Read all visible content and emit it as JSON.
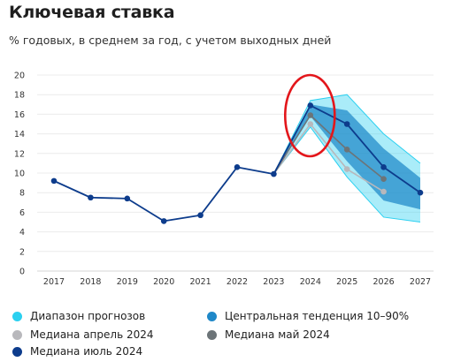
{
  "title": "Ключевая ставка",
  "subtitle": "% годовых, в среднем за год, с учетом выходных дней",
  "legend": [
    {
      "label": "Диапазон прогнозов",
      "color": "#2bd0f0"
    },
    {
      "label": "Центральная тенденция 10–90%",
      "color": "#1f88c8"
    },
    {
      "label": "Медиана апрель 2024",
      "color": "#b8b8bc"
    },
    {
      "label": "Медиана май 2024",
      "color": "#6c7478"
    },
    {
      "label": "Медиана июль 2024",
      "color": "#0d3c8c"
    }
  ],
  "chart_data": {
    "type": "line",
    "title": "Ключевая ставка",
    "subtitle": "% годовых, в среднем за год, с учетом выходных дней",
    "categories": [
      "2017",
      "2018",
      "2019",
      "2020",
      "2021",
      "2022",
      "2023",
      "2024",
      "2025",
      "2026",
      "2027"
    ],
    "ylim": [
      0,
      20
    ],
    "yticks": [
      0,
      2,
      4,
      6,
      8,
      10,
      12,
      14,
      16,
      18,
      20
    ],
    "grid": true,
    "series": [
      {
        "name": "Медиана июль 2024",
        "color": "#0d3c8c",
        "values": [
          9.2,
          7.5,
          7.4,
          5.1,
          5.7,
          10.6,
          9.9,
          16.9,
          15.0,
          10.6,
          8.0
        ]
      },
      {
        "name": "Медиана май 2024",
        "color": "#6c7478",
        "values": [
          null,
          null,
          null,
          null,
          null,
          null,
          9.9,
          15.9,
          12.4,
          9.4,
          null
        ]
      },
      {
        "name": "Медиана апрель 2024",
        "color": "#b8b8bc",
        "values": [
          null,
          null,
          null,
          null,
          null,
          null,
          9.9,
          15.0,
          10.4,
          8.1,
          null
        ]
      }
    ],
    "ranges": [
      {
        "name": "Диапазон прогнозов",
        "color": "#2bd0f0",
        "x": [
          "2023",
          "2024",
          "2025",
          "2026",
          "2027"
        ],
        "low": [
          9.9,
          14.7,
          9.6,
          5.5,
          5.0
        ],
        "high": [
          9.9,
          17.4,
          18.0,
          14.0,
          11.0
        ]
      },
      {
        "name": "Центральная тенденция 10–90%",
        "color": "#1f88c8",
        "x": [
          "2023",
          "2024",
          "2025",
          "2026",
          "2027"
        ],
        "low": [
          9.9,
          15.8,
          11.2,
          7.2,
          6.3
        ],
        "high": [
          9.9,
          17.0,
          16.4,
          12.5,
          9.5
        ]
      }
    ],
    "annotation": {
      "type": "ellipse",
      "color": "#e3161b",
      "around": "2024"
    }
  }
}
